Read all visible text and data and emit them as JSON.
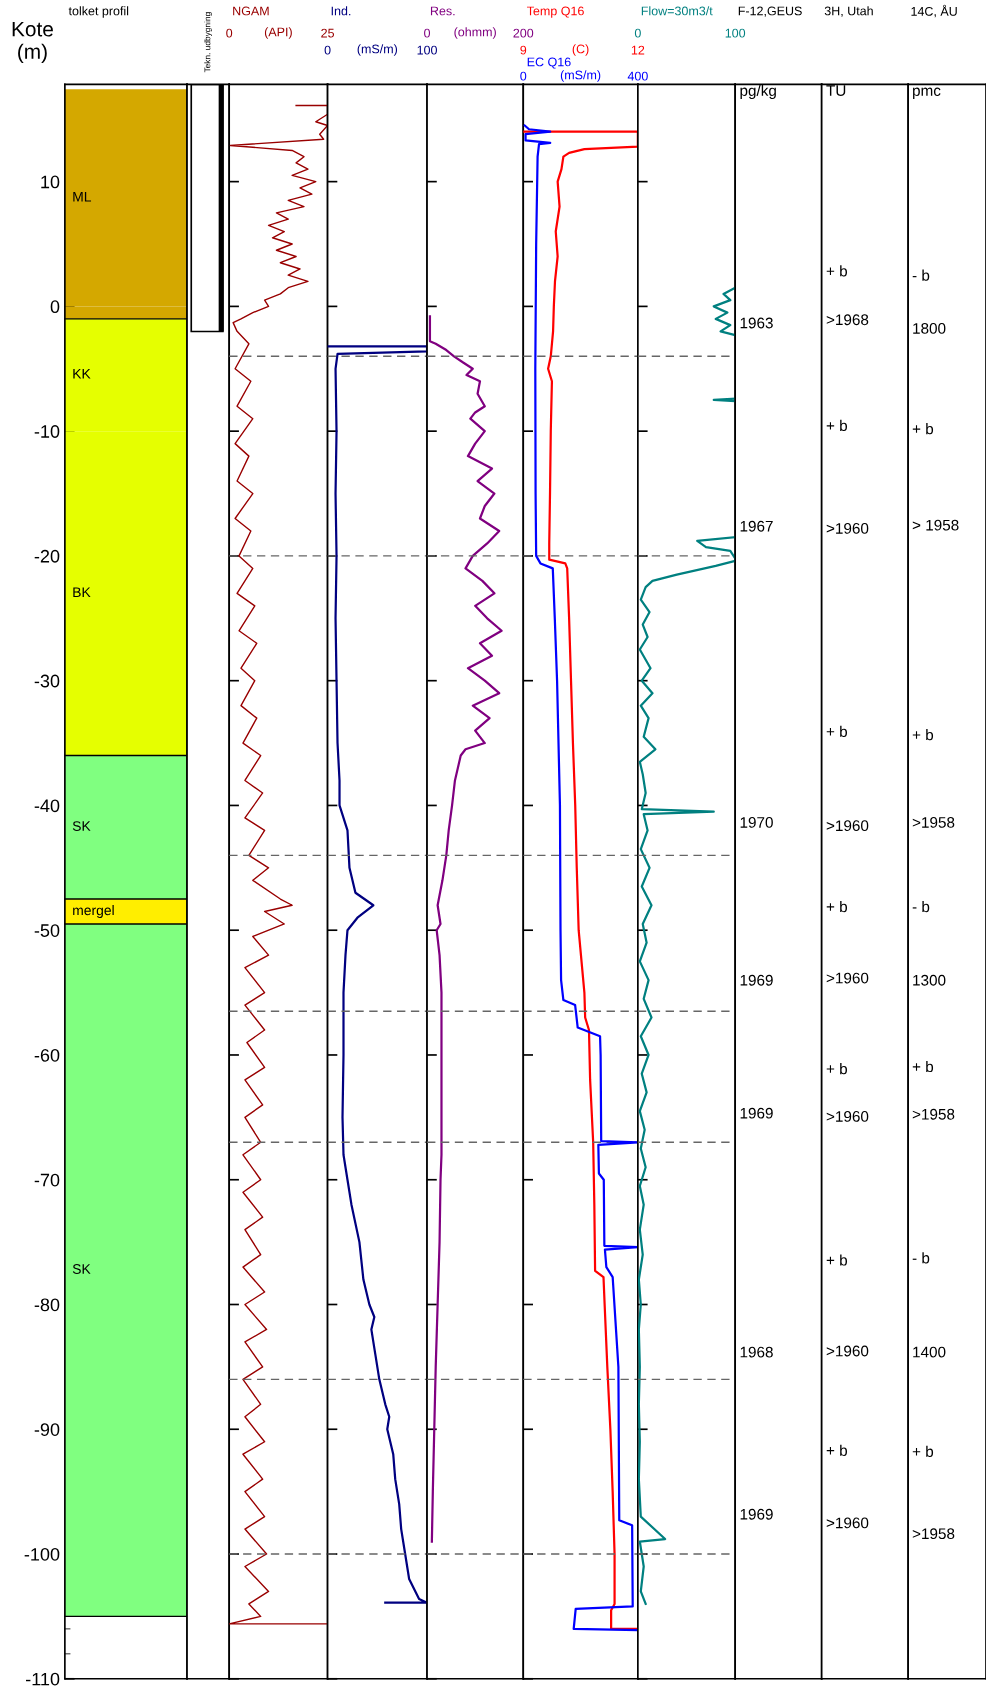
{
  "chart_data": [
    {
      "type": "bar",
      "title": "tolket profil",
      "ylabel": "Kote (m)",
      "categories": [
        null
      ],
      "stacked": true,
      "ylim": [
        -110,
        17.8
      ],
      "yticks": [
        10,
        0,
        {
          "value": -10,
          "label": "-10"
        },
        {
          "value": -20,
          "label": "-20"
        },
        {
          "value": -30,
          "label": "-30"
        },
        {
          "value": -40,
          "label": "-40"
        },
        {
          "value": -50,
          "label": "-50"
        },
        {
          "value": -60,
          "label": "-60"
        },
        {
          "value": -70,
          "label": "-70"
        },
        {
          "value": -80,
          "label": "-80"
        },
        {
          "value": -90,
          "label": "-90"
        },
        {
          "value": -100,
          "label": "-100"
        },
        {
          "value": -110,
          "label": "-110"
        }
      ],
      "tick_labels": "y",
      "series": [
        {
          "name": "ML",
          "color": "#d4a800",
          "values": [
            17.4
          ]
        },
        {
          "color": "#d4a800",
          "values": [
            -1
          ]
        },
        {
          "name": "KK",
          "color": "#e5ff00",
          "values": [
            -9
          ]
        },
        {
          "name": "BK",
          "color": "#e5ff00",
          "values": [
            -26
          ]
        },
        {
          "name": "SK",
          "color": "#80ff80",
          "values": [
            -11.5
          ]
        },
        {
          "name": "mergel",
          "color": "#ffee00",
          "values": [
            -2
          ]
        },
        {
          "name": "SK",
          "color": "#80ff80",
          "values": [
            -55.5
          ]
        }
      ],
      "ref_lines": [
        {
          "axis": "y",
          "value": -1,
          "color": "#000000",
          "line_style": "solid"
        },
        {
          "axis": "y",
          "value": -36,
          "color": "#000000",
          "line_style": "solid"
        },
        {
          "axis": "y",
          "value": -47.5,
          "color": "#000000",
          "line_style": "solid"
        },
        {
          "axis": "y",
          "value": -49.5,
          "color": "#000000",
          "line_style": "solid"
        },
        {
          "axis": "y",
          "value": -105,
          "color": "#000000",
          "line_style": "solid"
        }
      ]
    },
    {
      "type": "other",
      "title": "Tekn. udbygning"
    },
    {
      "type": "line",
      "orientation": "horizontal",
      "title": "NGAM",
      "xlabel": "(API)",
      "xlim": [
        0,
        25
      ],
      "xticks": [
        0,
        25
      ],
      "ylim": [
        -110,
        17.8
      ],
      "yticks": [
        10,
        0,
        -10,
        -20,
        -30,
        -40,
        -50,
        -60,
        -70,
        -80,
        -90,
        -100,
        -110
      ],
      "tick_labels": "x",
      "series": [
        {
          "color": "#990000",
          "x": [
            16.1,
            16.1,
            15.4,
            14.8,
            14.5,
            13.8,
            13.4,
            12.9,
            12.5,
            12.0,
            11.5,
            11.0,
            10.5,
            10.0,
            9.5,
            9.0,
            8.5,
            8.0,
            7.5,
            7.0,
            6.5,
            6.0,
            5.5,
            5.0,
            4.5,
            4.0,
            3.5,
            3.0,
            2.5,
            2.0,
            1.5,
            1.0,
            0.5,
            0.0,
            -0.5,
            -1.0,
            -1.3,
            -2,
            -3,
            -5,
            -6,
            -8,
            -9,
            -11,
            -12,
            -14,
            -15,
            -17,
            -18,
            -20,
            -21,
            -23,
            -24,
            -26,
            -27,
            -29,
            -30,
            -32,
            -33,
            -35,
            -36,
            -38,
            -39,
            -41,
            -42,
            -44,
            -45,
            -46,
            -47.5,
            -48,
            -48.5,
            -49.5,
            -50.5,
            -52,
            -53,
            -55,
            -56,
            -58,
            -59,
            -61,
            -62,
            -64,
            -65,
            -67,
            -68,
            -70,
            -71,
            -73,
            -74,
            -76,
            -77,
            -79,
            -80,
            -82,
            -83,
            -85,
            -86,
            -88,
            -89,
            -91,
            -92,
            -94,
            -95,
            -97,
            -98,
            -100,
            -101,
            -103,
            -104,
            -105,
            -105.6,
            -105.6
          ],
          "values": [
            17,
            25,
            25,
            22,
            25,
            23,
            24,
            0.3,
            16,
            19,
            17,
            20,
            16,
            22,
            18,
            21,
            15,
            19,
            12,
            15,
            10,
            14,
            11,
            16,
            12,
            17,
            13,
            18,
            15,
            20,
            15,
            13,
            9,
            10,
            6,
            3,
            1,
            2,
            5,
            1.5,
            5.5,
            2,
            6,
            1.5,
            5,
            2,
            6,
            1.5,
            5.5,
            2.5,
            6,
            2,
            6.5,
            2.5,
            7,
            3,
            6.5,
            3,
            7,
            3.5,
            8,
            4,
            8.5,
            4,
            9,
            5,
            10,
            6,
            13,
            16,
            9,
            14,
            6,
            10,
            4,
            9,
            4,
            9,
            4.5,
            9,
            4,
            8.5,
            4,
            8,
            3.5,
            8,
            3.5,
            8.5,
            4,
            8,
            3.5,
            9,
            4,
            9.5,
            4,
            8.5,
            3.5,
            8,
            4,
            9,
            3.5,
            8.5,
            4,
            9,
            4,
            9.5,
            4,
            10,
            5,
            8,
            0,
            25
          ]
        }
      ],
      "ref_lines": [
        {
          "axis": "y",
          "value": -4,
          "color": "#666666",
          "line_style": "dashed"
        },
        {
          "axis": "y",
          "value": -20,
          "color": "#666666",
          "line_style": "dashed"
        },
        {
          "axis": "y",
          "value": -44,
          "color": "#666666",
          "line_style": "dashed"
        },
        {
          "axis": "y",
          "value": -56.5,
          "color": "#666666",
          "line_style": "dashed"
        },
        {
          "axis": "y",
          "value": -67,
          "color": "#666666",
          "line_style": "dashed"
        },
        {
          "axis": "y",
          "value": -86,
          "color": "#666666",
          "line_style": "dashed"
        },
        {
          "axis": "y",
          "value": -100,
          "color": "#666666",
          "line_style": "dashed"
        }
      ]
    },
    {
      "type": "line",
      "orientation": "horizontal",
      "title": "Ind.",
      "xlabel": "(mS/m)",
      "xlim": [
        0,
        100
      ],
      "xticks": [
        0,
        100
      ],
      "ylim": [
        -110,
        17.8
      ],
      "yticks": [
        10,
        0,
        -10,
        -20,
        -30,
        -40,
        -50,
        -60,
        -70,
        -80,
        -90,
        -100,
        -110
      ],
      "tick_labels": "x",
      "series": [
        {
          "color": "#000080",
          "x": [
            -3.2,
            -3.2,
            -3.6,
            -3.8,
            -5,
            -10,
            -15,
            -20,
            -25,
            -30,
            -35,
            -38,
            -40,
            -42,
            -45,
            -47,
            -48,
            -49,
            -50,
            -52,
            -55,
            -60,
            -65,
            -68,
            -70,
            -72,
            -75,
            -78,
            -80,
            -81,
            -82,
            -84,
            -86,
            -88,
            -89,
            -90,
            -92,
            -94,
            -96,
            -98,
            -100,
            -102,
            -103.6,
            -103.9,
            -103.9
          ],
          "values": [
            0,
            100,
            100,
            10,
            8,
            9,
            8,
            9,
            8,
            9,
            10,
            12,
            12,
            20,
            22,
            28,
            46,
            30,
            20,
            18,
            16,
            16,
            15,
            16,
            20,
            24,
            32,
            36,
            42,
            47,
            44,
            48,
            52,
            58,
            62,
            60,
            66,
            68,
            72,
            74,
            78,
            82,
            92,
            100,
            58
          ]
        }
      ],
      "ref_lines": [
        {
          "axis": "y",
          "value": -4,
          "color": "#666666",
          "line_style": "dashed"
        },
        {
          "axis": "y",
          "value": -20,
          "color": "#666666",
          "line_style": "dashed"
        },
        {
          "axis": "y",
          "value": -44,
          "color": "#666666",
          "line_style": "dashed"
        },
        {
          "axis": "y",
          "value": -56.5,
          "color": "#666666",
          "line_style": "dashed"
        },
        {
          "axis": "y",
          "value": -67,
          "color": "#666666",
          "line_style": "dashed"
        },
        {
          "axis": "y",
          "value": -86,
          "color": "#666666",
          "line_style": "dashed"
        },
        {
          "axis": "y",
          "value": -100,
          "color": "#666666",
          "line_style": "dashed"
        }
      ]
    },
    {
      "type": "line",
      "orientation": "horizontal",
      "title": "Res.",
      "xlabel": "(ohmm)",
      "xlim": [
        0,
        200
      ],
      "xticks": [
        0,
        200
      ],
      "ylim": [
        -110,
        17.8
      ],
      "yticks": [
        10,
        0,
        -10,
        -20,
        -30,
        -40,
        -50,
        -60,
        -70,
        -80,
        -90,
        -100,
        -110
      ],
      "tick_labels": "x",
      "series": [
        {
          "color": "#800080",
          "x": [
            -0.8,
            -2.8,
            -3,
            -3.5,
            -4,
            -4.5,
            -5,
            -5.5,
            -6,
            -7,
            -8,
            -8.5,
            -9,
            -10,
            -11,
            -12,
            -13,
            -14,
            -15,
            -16,
            -17,
            -18,
            -19,
            -20,
            -21,
            -22,
            -23,
            -24,
            -25,
            -26,
            -27,
            -28,
            -29,
            -30,
            -31,
            -32,
            -33,
            -34,
            -35,
            -35.5,
            -36,
            -38,
            -40,
            -42,
            -44,
            -46,
            -48,
            -49.5,
            -50,
            -52,
            -55,
            -60,
            -65,
            -68,
            -70,
            -75,
            -80,
            -85,
            -90,
            -95,
            -99
          ],
          "values": [
            6,
            6,
            18,
            40,
            56,
            75,
            95,
            82,
            110,
            105,
            120,
            100,
            90,
            120,
            100,
            85,
            135,
            105,
            140,
            120,
            110,
            150,
            125,
            95,
            80,
            115,
            140,
            100,
            125,
            155,
            110,
            135,
            85,
            120,
            150,
            95,
            130,
            100,
            120,
            80,
            70,
            58,
            52,
            45,
            40,
            32,
            22,
            28,
            20,
            26,
            30,
            30,
            30,
            30,
            28,
            26,
            22,
            18,
            15,
            12,
            10
          ]
        }
      ],
      "ref_lines": [
        {
          "axis": "y",
          "value": -4,
          "color": "#666666",
          "line_style": "dashed"
        },
        {
          "axis": "y",
          "value": -20,
          "color": "#666666",
          "line_style": "dashed"
        },
        {
          "axis": "y",
          "value": -44,
          "color": "#666666",
          "line_style": "dashed"
        },
        {
          "axis": "y",
          "value": -56.5,
          "color": "#666666",
          "line_style": "dashed"
        },
        {
          "axis": "y",
          "value": -67,
          "color": "#666666",
          "line_style": "dashed"
        },
        {
          "axis": "y",
          "value": -86,
          "color": "#666666",
          "line_style": "dashed"
        },
        {
          "axis": "y",
          "value": -100,
          "color": "#666666",
          "line_style": "dashed"
        }
      ]
    },
    {
      "type": "line",
      "orientation": "horizontal",
      "title": "Temp Q16",
      "xlabel": "(C)",
      "xlim": [
        9,
        12
      ],
      "xticks": [
        9,
        12
      ],
      "x2label": "(mS/m)",
      "x2lim": [
        0,
        400
      ],
      "x2ticks": [
        0,
        400
      ],
      "ylim": [
        -110,
        17.8
      ],
      "yticks": [
        10,
        0,
        -10,
        -20,
        -30,
        -40,
        -50,
        -60,
        -70,
        -80,
        -90,
        -100,
        -110
      ],
      "tick_labels": "x",
      "series": [
        {
          "color": "#ff0000",
          "x": [
            14.0,
            14.0,
            13.8,
            12.8,
            12.6,
            12.3,
            12,
            11,
            10,
            8,
            6,
            4,
            2,
            0,
            -2,
            -4,
            -5,
            -6,
            -10,
            -15,
            -19,
            -20.3,
            -20.6,
            -21,
            -25,
            -30,
            -35,
            -40,
            -45,
            -50,
            -55,
            -57,
            -58,
            -62,
            -67,
            -72,
            -77.3,
            -77.8,
            -80,
            -85,
            -90,
            -95,
            -100,
            -104,
            -104.5,
            -106,
            -106
          ],
          "values": [
            9.0,
            12,
            12,
            12,
            10.6,
            10.2,
            10.05,
            10.0,
            9.9,
            9.95,
            9.85,
            9.9,
            9.83,
            9.8,
            9.78,
            9.72,
            9.65,
            9.75,
            9.72,
            9.7,
            9.68,
            9.68,
            10.1,
            10.15,
            10.2,
            10.25,
            10.3,
            10.36,
            10.4,
            10.45,
            10.6,
            10.62,
            10.72,
            10.75,
            10.83,
            10.86,
            10.88,
            11.1,
            11.13,
            11.2,
            11.28,
            11.34,
            11.39,
            11.39,
            11.3,
            11.3,
            12
          ]
        },
        {
          "name": "EC Q16",
          "color": "#0000ff",
          "axis": "x2",
          "x": [
            14.5,
            14.2,
            14.0,
            13.8,
            13.3,
            13.1,
            13.0,
            12,
            5,
            -5,
            -15,
            -20,
            -20.6,
            -21,
            -25,
            -30,
            -40,
            -50,
            -54,
            -55.6,
            -56,
            -57.8,
            -58.5,
            -60,
            -66.9,
            -67,
            -67.2,
            -69.5,
            -70,
            -75.3,
            -75.4,
            -75.6,
            -77,
            -77.8,
            -85,
            -97.3,
            -97.7,
            -104.2,
            -104.4,
            -106,
            -106.1
          ],
          "values": [
            5,
            20,
            94,
            8,
            8,
            94,
            55,
            50,
            45,
            42,
            43,
            45,
            60,
            103,
            110,
            118,
            128,
            130,
            132,
            140,
            181,
            190,
            268,
            270,
            272,
            400,
            262,
            264,
            281,
            283,
            400,
            285,
            290,
            312,
            332,
            335,
            380,
            382,
            183,
            176,
            400
          ]
        }
      ],
      "ref_lines": [
        {
          "axis": "y",
          "value": -4,
          "color": "#666666",
          "line_style": "dashed"
        },
        {
          "axis": "y",
          "value": -20,
          "color": "#666666",
          "line_style": "dashed"
        },
        {
          "axis": "y",
          "value": -44,
          "color": "#666666",
          "line_style": "dashed"
        },
        {
          "axis": "y",
          "value": -56.5,
          "color": "#666666",
          "line_style": "dashed"
        },
        {
          "axis": "y",
          "value": -67,
          "color": "#666666",
          "line_style": "dashed"
        },
        {
          "axis": "y",
          "value": -86,
          "color": "#666666",
          "line_style": "dashed"
        },
        {
          "axis": "y",
          "value": -100,
          "color": "#666666",
          "line_style": "dashed"
        }
      ]
    },
    {
      "type": "line",
      "orientation": "horizontal",
      "title": "Flow=30m3/t",
      "xlim": [
        0,
        100
      ],
      "xticks": [
        0,
        100
      ],
      "ylim": [
        -110,
        17.8
      ],
      "yticks": [
        10,
        0,
        -10,
        -20,
        -30,
        -40,
        -50,
        -60,
        -70,
        -80,
        -90,
        -100,
        -110
      ],
      "tick_labels": "x",
      "series": [
        {
          "color": "#008080",
          "x": [
            1.5,
            1.0,
            0.5,
            0,
            -0.5,
            -1,
            -1.5,
            -2,
            -2.3,
            null,
            -7.4,
            -7.5,
            -7.6,
            null,
            -18.5,
            -18.8,
            -19.3,
            -19.6,
            -20.2,
            -20.4,
            -20.8,
            -21.5,
            -22,
            -22.5,
            -23.5,
            -24.5,
            -25.5,
            -26.5,
            -27.5,
            -29,
            -30,
            -31,
            -32,
            -33,
            -34.5,
            -35.5,
            -36.5,
            -37.5,
            -39,
            -40.3,
            -40.5,
            -40.7,
            -42,
            -43.5,
            -45,
            -46.5,
            -48,
            -49.5,
            -51,
            -52.5,
            -54,
            -55.5,
            -57,
            -58.5,
            -60,
            -61.5,
            -63,
            -64.5,
            -66,
            -67.5,
            -69,
            -70.5,
            -72,
            -74,
            -76,
            -78,
            -80,
            -82,
            -85,
            -88,
            -91,
            -94,
            -97,
            -98.8,
            -99,
            -101,
            -103,
            -104
          ],
          "values": [
            100,
            88,
            95,
            78,
            92,
            80,
            95,
            85,
            100,
            null,
            100,
            78,
            100,
            null,
            100,
            61,
            70,
            95,
            100,
            100,
            80,
            40,
            15,
            8,
            3,
            12,
            5,
            10,
            2,
            13,
            4,
            15,
            3,
            11,
            6,
            18,
            2,
            5,
            8,
            4,
            78,
            6,
            10,
            3,
            12,
            4,
            14,
            5,
            9,
            2,
            11,
            6,
            14,
            3,
            11,
            4,
            9,
            2,
            7,
            3,
            8,
            2,
            6,
            2,
            5,
            1,
            3,
            1,
            2,
            1,
            2,
            1,
            3,
            28,
            2,
            6,
            3,
            8
          ]
        }
      ],
      "ref_lines": [
        {
          "axis": "y",
          "value": -4,
          "color": "#666666",
          "line_style": "dashed"
        },
        {
          "axis": "y",
          "value": -20,
          "color": "#666666",
          "line_style": "dashed"
        },
        {
          "axis": "y",
          "value": -44,
          "color": "#666666",
          "line_style": "dashed"
        },
        {
          "axis": "y",
          "value": -56.5,
          "color": "#666666",
          "line_style": "dashed"
        },
        {
          "axis": "y",
          "value": -67,
          "color": "#666666",
          "line_style": "dashed"
        },
        {
          "axis": "y",
          "value": -86,
          "color": "#666666",
          "line_style": "dashed"
        },
        {
          "axis": "y",
          "value": -100,
          "color": "#666666",
          "line_style": "dashed"
        }
      ]
    },
    {
      "type": "other",
      "title": "F-12,GEUS",
      "annotations": [
        "pg/kg",
        "1963",
        "1967",
        "1970",
        "1969",
        "1969",
        "1968",
        "1969"
      ]
    },
    {
      "type": "other",
      "title": "3H, Utah",
      "annotations": [
        "TU",
        "+ b",
        ">1968",
        "+ b",
        ">1960",
        "+ b",
        ">1960",
        "+ b",
        ">1960",
        "+ b",
        ">1960",
        "+ b",
        ">1960",
        "+ b",
        ">1960"
      ]
    },
    {
      "type": "other",
      "title": "14C, ÅU",
      "annotations": [
        "pmc",
        "- b",
        "1800",
        "+ b",
        "> 1958",
        "+ b",
        ">1958",
        "- b",
        "1300",
        "+ b",
        ">1958",
        "- b",
        "1400",
        "+ b",
        ">1958"
      ]
    }
  ]
}
